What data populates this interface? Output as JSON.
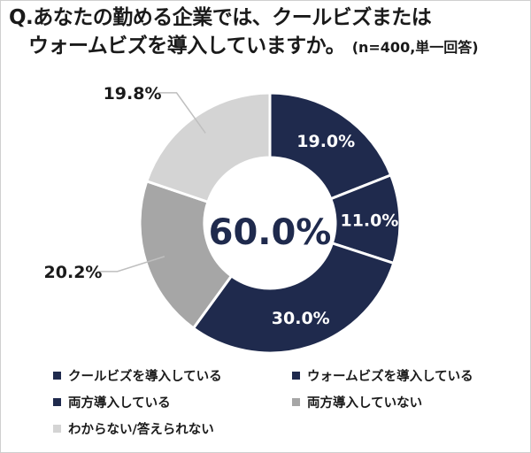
{
  "title": {
    "line1": "Q.あなたの勤める企業では、クールビズまたは",
    "line2": "ウォームビズを導入していますか。",
    "note": "(n=400,単一回答)"
  },
  "center_label": "60.0%",
  "chart_data": {
    "type": "pie",
    "donut": true,
    "title": "Q.あなたの勤める企業では、クールビズまたはウォームビズを導入していますか。(n=400,単一回答)",
    "center_text": "60.0%",
    "categories": [
      "クールビズを導入している",
      "ウォームビズを導入している",
      "両方導入している",
      "両方導入していない",
      "わからない/答えられない"
    ],
    "values": [
      19.0,
      11.0,
      30.0,
      20.2,
      19.8
    ],
    "labels": [
      "19.0%",
      "11.0%",
      "30.0%",
      "20.2%",
      "19.8%"
    ],
    "colors": [
      "#1f2a4d",
      "#1f2a4d",
      "#1f2a4d",
      "#a6a6a6",
      "#d4d4d4"
    ],
    "label_colors": [
      "#ffffff",
      "#ffffff",
      "#ffffff",
      "#1a1a1a",
      "#1a1a1a"
    ],
    "legend_position": "bottom"
  }
}
